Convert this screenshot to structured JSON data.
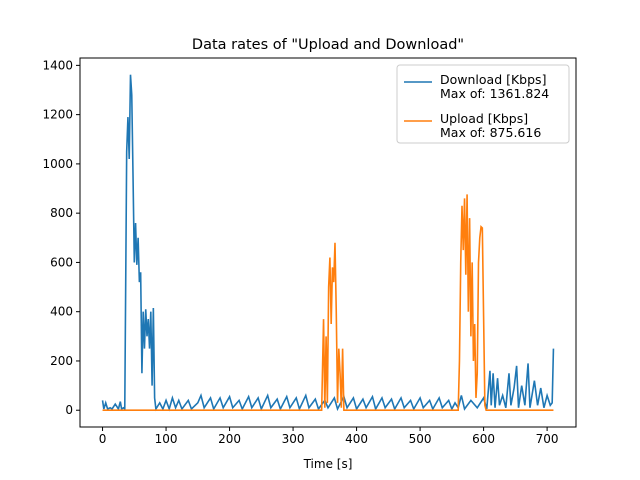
{
  "chart_data": {
    "type": "line",
    "title": "Data rates of \"Upload and Download\"",
    "xlabel": "Time [s]",
    "xlim": [
      -35.5,
      745.5
    ],
    "xticks": [
      0,
      100,
      200,
      300,
      400,
      500,
      600,
      700
    ],
    "ylim": [
      -68.1,
      1429.9
    ],
    "yticks": [
      0,
      200,
      400,
      600,
      800,
      1000,
      1200,
      1400
    ],
    "legend": "upper right",
    "series": [
      {
        "name": "Download [Kbps]\nMax of: 1361.824",
        "color": "#1f77b4",
        "x": [
          0,
          2,
          5,
          8,
          12,
          15,
          20,
          25,
          28,
          30,
          33,
          35,
          38,
          40,
          42,
          44,
          46,
          48,
          50,
          52,
          54,
          56,
          58,
          60,
          62,
          64,
          66,
          68,
          70,
          72,
          74,
          76,
          78,
          80,
          82,
          84,
          90,
          95,
          100,
          105,
          110,
          115,
          120,
          125,
          135,
          140,
          150,
          155,
          160,
          170,
          175,
          185,
          190,
          200,
          205,
          215,
          220,
          230,
          235,
          245,
          250,
          260,
          265,
          275,
          280,
          290,
          295,
          305,
          310,
          320,
          325,
          335,
          340,
          350,
          355,
          365,
          370,
          380,
          385,
          395,
          400,
          410,
          415,
          425,
          430,
          440,
          445,
          455,
          460,
          470,
          475,
          485,
          490,
          500,
          505,
          515,
          520,
          530,
          535,
          545,
          550,
          555,
          560,
          565,
          570,
          580,
          590,
          600,
          605,
          610,
          612,
          615,
          618,
          622,
          625,
          630,
          635,
          640,
          643,
          648,
          652,
          655,
          660,
          665,
          670,
          673,
          680,
          685,
          690,
          695,
          700,
          705,
          708,
          710
        ],
        "values": [
          40,
          5,
          30,
          5,
          10,
          5,
          25,
          5,
          35,
          5,
          10,
          5,
          1050,
          1190,
          1020,
          1362,
          1280,
          950,
          600,
          760,
          590,
          700,
          520,
          560,
          150,
          400,
          250,
          410,
          300,
          370,
          250,
          400,
          100,
          415,
          50,
          5,
          30,
          5,
          40,
          5,
          50,
          10,
          40,
          5,
          40,
          5,
          30,
          60,
          10,
          50,
          5,
          50,
          10,
          55,
          10,
          40,
          5,
          55,
          10,
          50,
          5,
          60,
          10,
          45,
          5,
          55,
          10,
          50,
          5,
          60,
          10,
          45,
          5,
          40,
          10,
          50,
          5,
          55,
          10,
          50,
          5,
          45,
          10,
          55,
          5,
          50,
          10,
          45,
          5,
          50,
          10,
          40,
          5,
          50,
          10,
          40,
          5,
          50,
          10,
          40,
          5,
          30,
          10,
          60,
          5,
          40,
          10,
          50,
          5,
          160,
          20,
          150,
          10,
          130,
          20,
          60,
          10,
          150,
          20,
          90,
          180,
          10,
          100,
          20,
          190,
          10,
          120,
          20,
          90,
          10,
          60,
          20,
          30,
          250
        ]
      },
      {
        "name": "Upload [Kbps]\nMax of: 875.616",
        "color": "#ff7f0e",
        "x": [
          0,
          345,
          348,
          350,
          352,
          354,
          356,
          358,
          360,
          362,
          364,
          366,
          368,
          370,
          372,
          374,
          376,
          378,
          380,
          560,
          562,
          564,
          566,
          568,
          570,
          572,
          574,
          576,
          578,
          580,
          582,
          584,
          586,
          588,
          590,
          592,
          594,
          596,
          598,
          600,
          602,
          604,
          710
        ],
        "values": [
          0,
          0,
          370,
          10,
          300,
          30,
          500,
          620,
          350,
          580,
          520,
          680,
          400,
          30,
          250,
          150,
          10,
          250,
          0,
          0,
          200,
          600,
          830,
          650,
          860,
          550,
          876,
          400,
          780,
          300,
          600,
          200,
          350,
          50,
          150,
          600,
          700,
          745,
          740,
          380,
          20,
          0,
          0
        ]
      }
    ]
  }
}
